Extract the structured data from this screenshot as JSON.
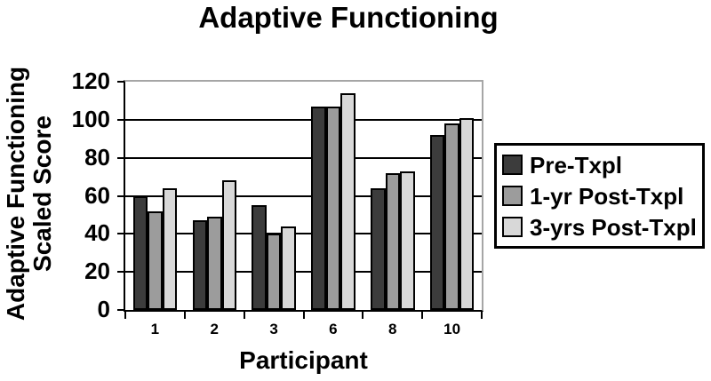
{
  "chart_data": {
    "type": "bar",
    "title": "Adaptive Functioning",
    "xlabel": "Participant",
    "ylabel": "Adaptive Functioning Scaled Score",
    "ylabel_lines": [
      "Adaptive Functioning",
      "Scaled Score"
    ],
    "categories": [
      "1",
      "2",
      "3",
      "6",
      "8",
      "10"
    ],
    "series": [
      {
        "name": "Pre-Txpl",
        "color": "#3c3c3c",
        "values": [
          60,
          47,
          55,
          107,
          64,
          92
        ]
      },
      {
        "name": "1-yr Post-Txpl",
        "color": "#9c9c9c",
        "values": [
          52,
          49,
          40,
          107,
          72,
          98
        ]
      },
      {
        "name": "3-yrs Post-Txpl",
        "color": "#d8d8d8",
        "values": [
          64,
          68,
          44,
          114,
          73,
          101
        ]
      }
    ],
    "ylim": [
      0,
      120
    ],
    "yticks": [
      0,
      20,
      40,
      60,
      80,
      100,
      120
    ],
    "grid": true,
    "legend_position": "right"
  },
  "colors": {
    "background": "#ffffff",
    "text": "#000000",
    "axis": "#000000",
    "gridline": "#000000",
    "frame_top_right": "#a6a6a6",
    "bar_outline": "#000000",
    "legend_border": "#000000"
  }
}
